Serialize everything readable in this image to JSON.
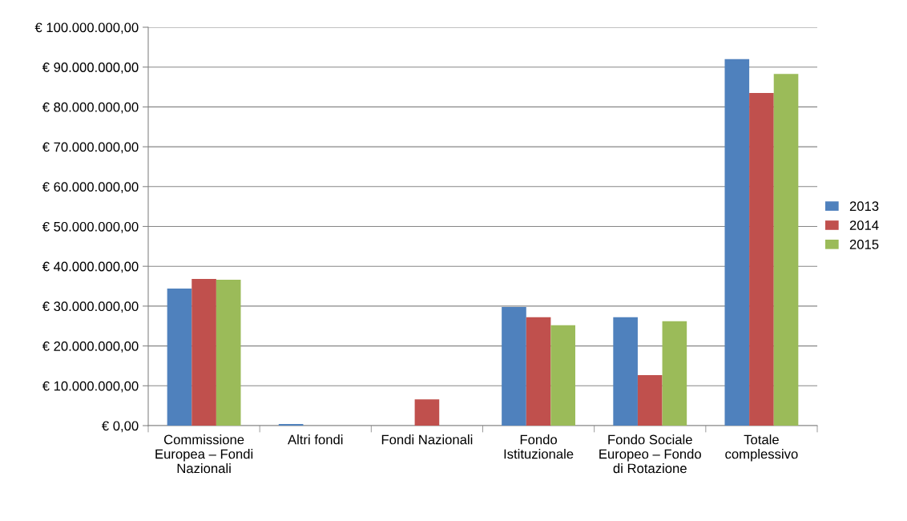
{
  "chart_data": {
    "type": "bar",
    "categories": [
      "Commissione Europea – Fondi Nazionali",
      "Altri fondi",
      "Fondi Nazionali",
      "Fondo Istituzionale",
      "Fondo Sociale Europeo – Fondo di Rotazione",
      "Totale complessivo"
    ],
    "series": [
      {
        "name": "2013",
        "color": "#4f81bd",
        "values": [
          34400000,
          400000,
          null,
          29800000,
          27200000,
          92000000
        ]
      },
      {
        "name": "2014",
        "color": "#c0504d",
        "values": [
          36800000,
          null,
          6600000,
          27200000,
          12700000,
          83500000
        ]
      },
      {
        "name": "2015",
        "color": "#9bbb59",
        "values": [
          36600000,
          null,
          null,
          25200000,
          26200000,
          88300000
        ]
      }
    ],
    "ylim": [
      0,
      100000000
    ],
    "yticks": [
      {
        "value": 0,
        "label": "€ 0,00"
      },
      {
        "value": 10000000,
        "label": "€ 10.000.000,00"
      },
      {
        "value": 20000000,
        "label": "€ 20.000.000,00"
      },
      {
        "value": 30000000,
        "label": "€ 30.000.000,00"
      },
      {
        "value": 40000000,
        "label": "€ 40.000.000,00"
      },
      {
        "value": 50000000,
        "label": "€ 50.000.000,00"
      },
      {
        "value": 60000000,
        "label": "€ 60.000.000,00"
      },
      {
        "value": 70000000,
        "label": "€ 70.000.000,00"
      },
      {
        "value": 80000000,
        "label": "€ 80.000.000,00"
      },
      {
        "value": 90000000,
        "label": "€ 90.000.000,00"
      },
      {
        "value": 100000000,
        "label": "€ 100.000.000,00"
      }
    ],
    "grid": "y",
    "legend": "right"
  }
}
